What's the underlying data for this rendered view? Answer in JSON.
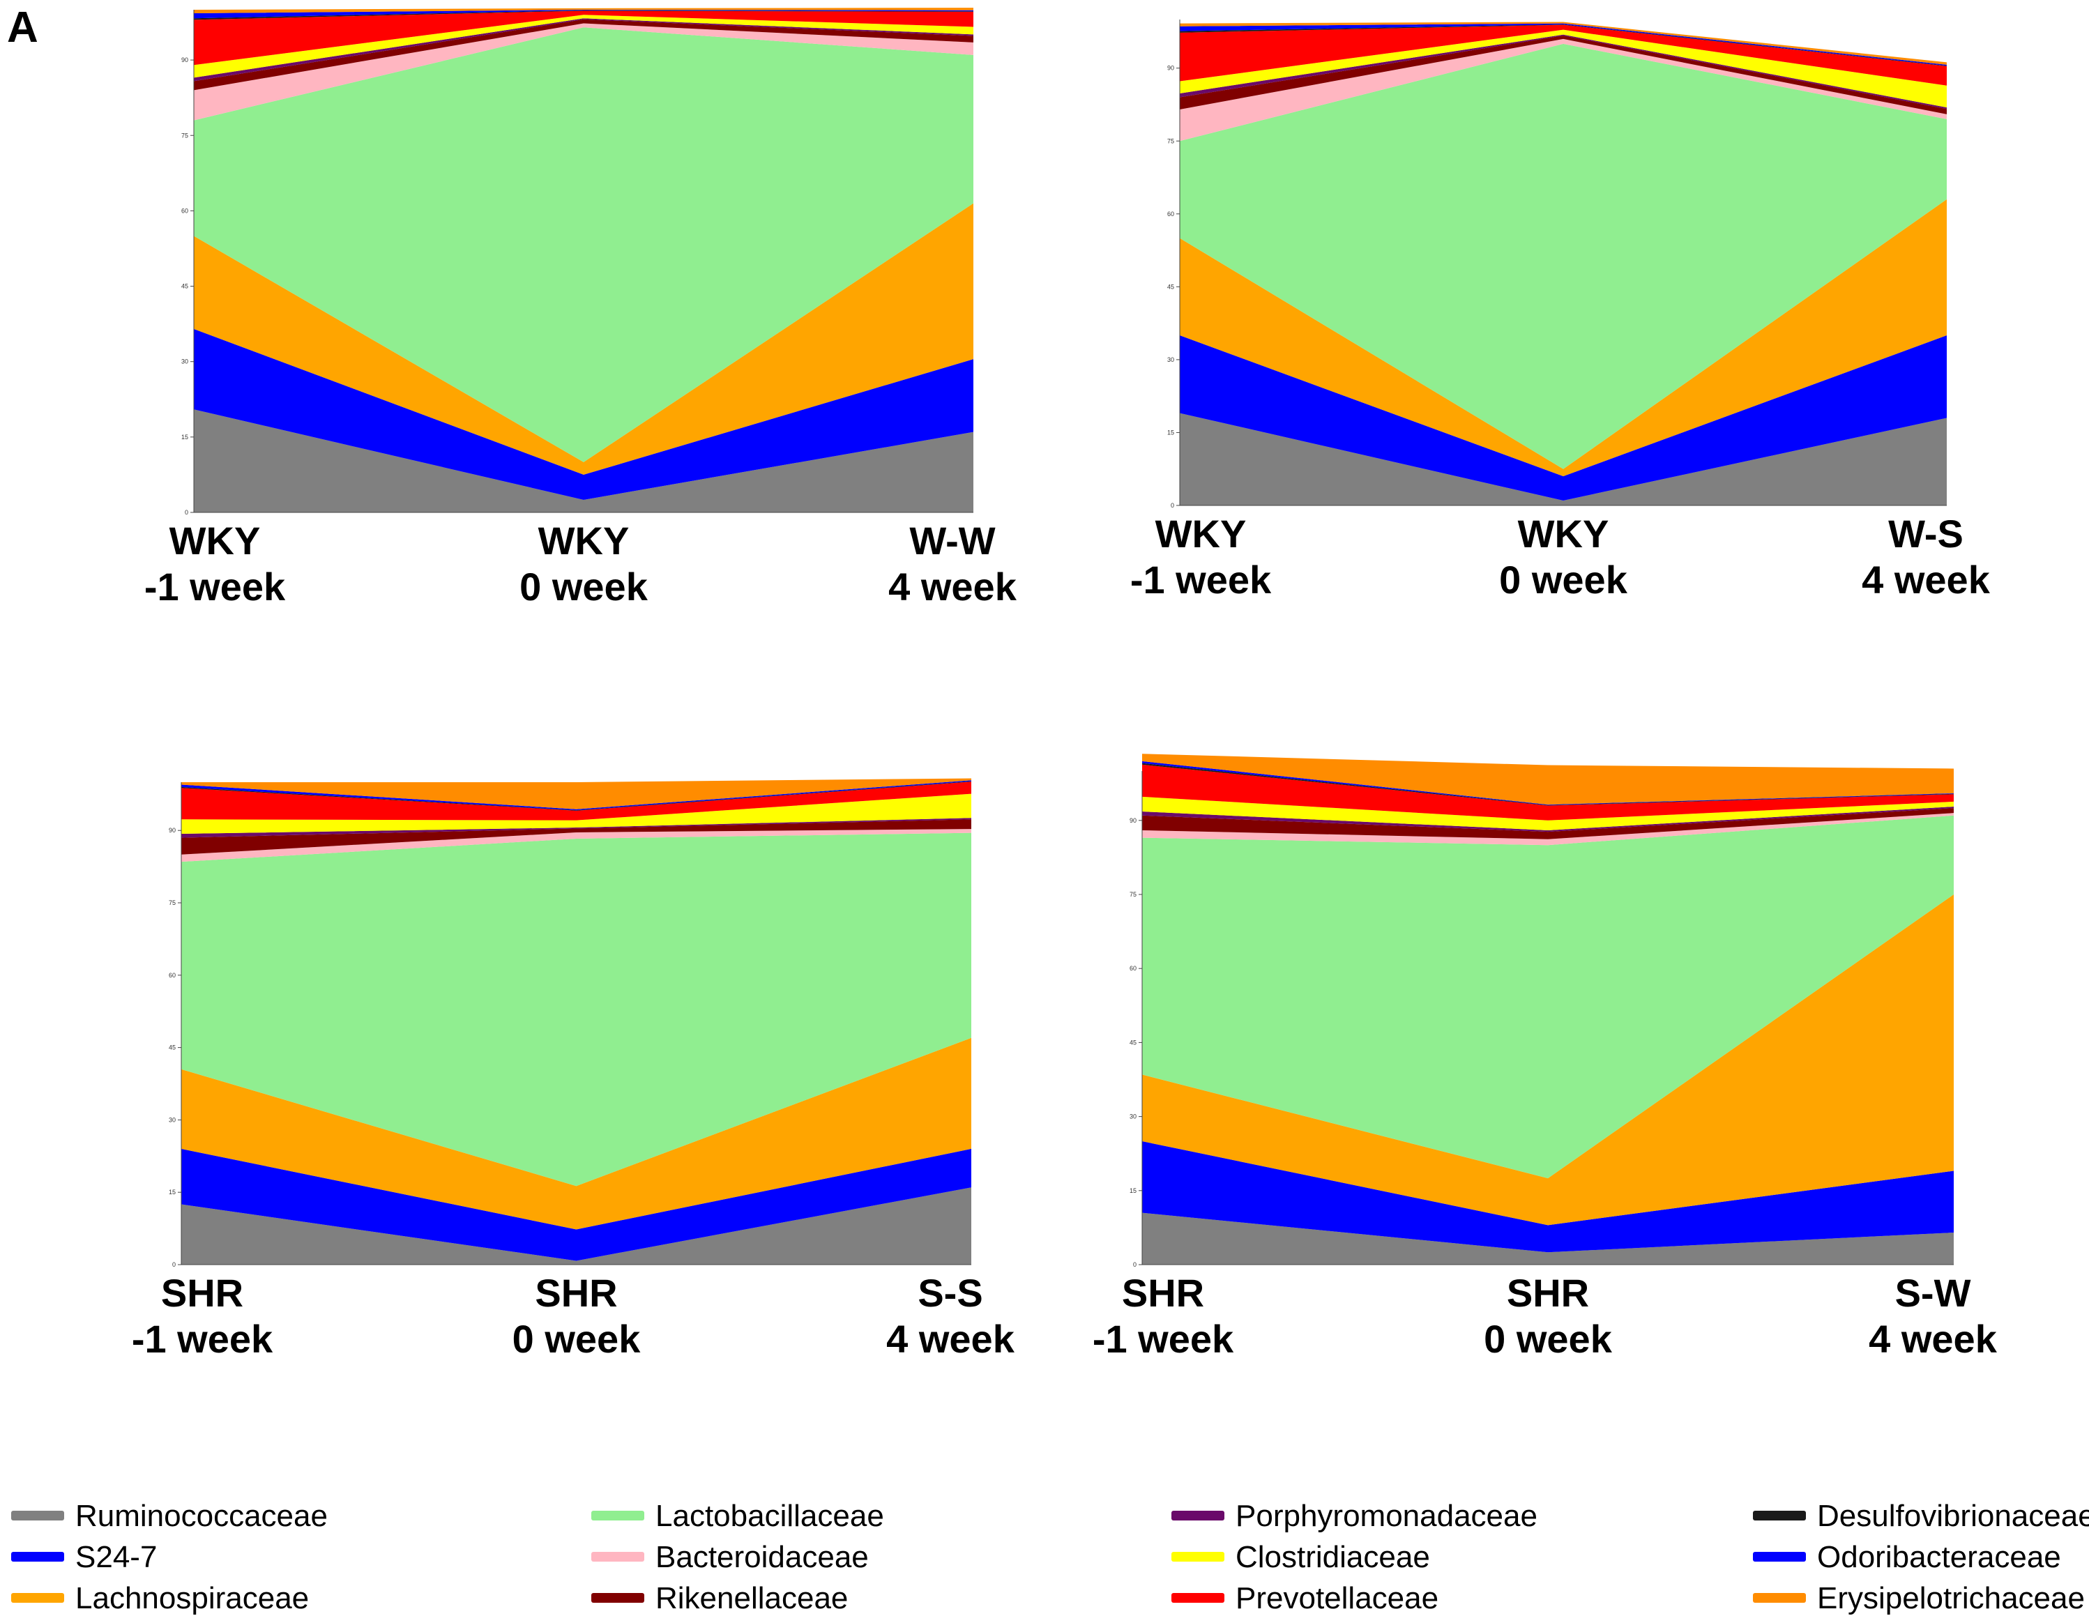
{
  "figure_label": "A",
  "legend": [
    {
      "name": "Ruminococcaceae",
      "color": "#808080"
    },
    {
      "name": "S24-7",
      "color": "#0000ff"
    },
    {
      "name": "Lachnospiraceae",
      "color": "#ffa500"
    },
    {
      "name": "Lactobacillaceae",
      "color": "#90ee90"
    },
    {
      "name": "Bacteroidaceae",
      "color": "#ffb6c1"
    },
    {
      "name": "Rikenellaceae",
      "color": "#800000"
    },
    {
      "name": "Porphyromonadaceae",
      "color": "#6a0a6a"
    },
    {
      "name": "Clostridiaceae",
      "color": "#ffff00"
    },
    {
      "name": "Prevotellaceae",
      "color": "#ff0000"
    },
    {
      "name": "Desulfovibrionaceae",
      "color": "#1a1a1a"
    },
    {
      "name": "Odoribacteraceae",
      "color": "#0000ff"
    },
    {
      "name": "Erysipelotrichaceae",
      "color": "#ff8c00"
    }
  ],
  "chart_data": [
    {
      "type": "area",
      "ylim": [
        0,
        100
      ],
      "yticks": [
        "0",
        "15",
        "30",
        "45",
        "60",
        "75",
        "90"
      ],
      "categories": [
        [
          "WKY",
          "-1 week"
        ],
        [
          "WKY",
          "0 week"
        ],
        [
          "W-W",
          "4 week"
        ]
      ],
      "series": [
        {
          "name": "Ruminococcaceae",
          "values": [
            20.5,
            2.5,
            16
          ]
        },
        {
          "name": "S24-7",
          "values": [
            16,
            5,
            14.5
          ]
        },
        {
          "name": "Lachnospiraceae",
          "values": [
            18.5,
            2.5,
            31
          ]
        },
        {
          "name": "Lactobacillaceae",
          "values": [
            23,
            86.5,
            29.5
          ]
        },
        {
          "name": "Bacteroidaceae",
          "values": [
            6,
            0.8,
            2.5
          ]
        },
        {
          "name": "Rikenellaceae",
          "values": [
            1.8,
            0.8,
            1.3
          ]
        },
        {
          "name": "Porphyromonadaceae",
          "values": [
            0.7,
            0.2,
            0.3
          ]
        },
        {
          "name": "Clostridiaceae",
          "values": [
            2.5,
            0.7,
            1.5
          ]
        },
        {
          "name": "Prevotellaceae",
          "values": [
            9,
            0.8,
            3
          ]
        },
        {
          "name": "Desulfovibrionaceae",
          "values": [
            0.3,
            0.1,
            0.1
          ]
        },
        {
          "name": "Odoribacteraceae",
          "values": [
            1,
            0.1,
            0.2
          ]
        },
        {
          "name": "Erysipelotrichaceae",
          "values": [
            0.7,
            0.3,
            0.5
          ]
        }
      ]
    },
    {
      "type": "area",
      "ylim": [
        0,
        100
      ],
      "yticks": [
        "0",
        "15",
        "30",
        "45",
        "60",
        "75",
        "90"
      ],
      "categories": [
        [
          "WKY",
          "-1 week"
        ],
        [
          "WKY",
          "0 week"
        ],
        [
          "W-S",
          "4 week"
        ]
      ],
      "series": [
        {
          "name": "Ruminococcaceae",
          "values": [
            19,
            1,
            18
          ]
        },
        {
          "name": "S24-7",
          "values": [
            16,
            5,
            17
          ]
        },
        {
          "name": "Lachnospiraceae",
          "values": [
            20,
            1.5,
            28
          ]
        },
        {
          "name": "Lactobacillaceae",
          "values": [
            20,
            87.5,
            16.5
          ]
        },
        {
          "name": "Bacteroidaceae",
          "values": [
            6.5,
            1,
            1
          ]
        },
        {
          "name": "Rikenellaceae",
          "values": [
            2.5,
            0.7,
            1.1
          ]
        },
        {
          "name": "Porphyromonadaceae",
          "values": [
            0.8,
            0.2,
            0.3
          ]
        },
        {
          "name": "Clostridiaceae",
          "values": [
            2.5,
            1,
            4.5
          ]
        },
        {
          "name": "Prevotellaceae",
          "values": [
            10,
            1,
            4
          ]
        },
        {
          "name": "Desulfovibrionaceae",
          "values": [
            0.3,
            0.1,
            0.1
          ]
        },
        {
          "name": "Odoribacteraceae",
          "values": [
            1,
            0.2,
            0.2
          ]
        },
        {
          "name": "Erysipelotrichaceae",
          "values": [
            0.6,
            0.3,
            0.5
          ]
        }
      ]
    },
    {
      "type": "area",
      "ylim": [
        0,
        100
      ],
      "yticks": [
        "0",
        "15",
        "30",
        "45",
        "60",
        "75",
        "90"
      ],
      "categories": [
        [
          "SHR",
          "-1 week"
        ],
        [
          "SHR",
          "0 week"
        ],
        [
          "S-S",
          "4 week"
        ]
      ],
      "series": [
        {
          "name": "Ruminococcaceae",
          "values": [
            12.5,
            0.8,
            16
          ]
        },
        {
          "name": "S24-7",
          "values": [
            11.5,
            6.5,
            8
          ]
        },
        {
          "name": "Lachnospiraceae",
          "values": [
            16.5,
            9,
            23
          ]
        },
        {
          "name": "Lactobacillaceae",
          "values": [
            43,
            72,
            42.5
          ]
        },
        {
          "name": "Bacteroidaceae",
          "values": [
            1.5,
            1.3,
            0.8
          ]
        },
        {
          "name": "Rikenellaceae",
          "values": [
            3.5,
            0.8,
            2
          ]
        },
        {
          "name": "Porphyromonadaceae",
          "values": [
            0.8,
            0.2,
            0.3
          ]
        },
        {
          "name": "Clostridiaceae",
          "values": [
            3,
            1.5,
            5
          ]
        },
        {
          "name": "Prevotellaceae",
          "values": [
            6.5,
            2,
            2.5
          ]
        },
        {
          "name": "Desulfovibrionaceae",
          "values": [
            0.2,
            0.1,
            0.1
          ]
        },
        {
          "name": "Odoribacteraceae",
          "values": [
            0.5,
            0.2,
            0.2
          ]
        },
        {
          "name": "Erysipelotrichaceae",
          "values": [
            0.5,
            5.6,
            0.4
          ]
        }
      ]
    },
    {
      "type": "area",
      "ylim": [
        0,
        100
      ],
      "yticks": [
        "0",
        "15",
        "30",
        "45",
        "60",
        "75",
        "90"
      ],
      "categories": [
        [
          "SHR",
          "-1 week"
        ],
        [
          "SHR",
          "0 week"
        ],
        [
          "S-W",
          "4 week"
        ]
      ],
      "series": [
        {
          "name": "Ruminococcaceae",
          "values": [
            10.5,
            2.5,
            6.5
          ]
        },
        {
          "name": "S24-7",
          "values": [
            14.5,
            5.5,
            12.5
          ]
        },
        {
          "name": "Lachnospiraceae",
          "values": [
            13.5,
            9.5,
            56
          ]
        },
        {
          "name": "Lactobacillaceae",
          "values": [
            48,
            67.5,
            16
          ]
        },
        {
          "name": "Bacteroidaceae",
          "values": [
            1.5,
            1.2,
            0.5
          ]
        },
        {
          "name": "Rikenellaceae",
          "values": [
            3,
            1.5,
            1
          ]
        },
        {
          "name": "Porphyromonadaceae",
          "values": [
            0.8,
            0.3,
            0.3
          ]
        },
        {
          "name": "Clostridiaceae",
          "values": [
            3,
            2,
            1
          ]
        },
        {
          "name": "Prevotellaceae",
          "values": [
            6.5,
            3,
            1.5
          ]
        },
        {
          "name": "Desulfovibrionaceae",
          "values": [
            0.3,
            0.1,
            0.1
          ]
        },
        {
          "name": "Odoribacteraceae",
          "values": [
            0.4,
            0.1,
            0.1
          ]
        },
        {
          "name": "Erysipelotrichaceae",
          "values": [
            1.5,
            8,
            5
          ]
        }
      ]
    }
  ]
}
